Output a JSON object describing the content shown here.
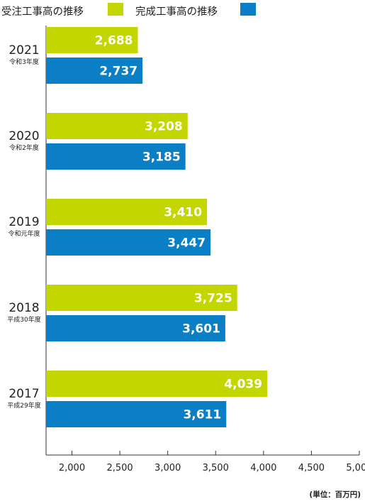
{
  "legend": {
    "orders_label": "受注工事高の推移",
    "completed_label": "完成工事高の推移"
  },
  "unit_label": "(単位：百万円)",
  "colors": {
    "orders": "#c3d600",
    "completed": "#0a7fc6",
    "axis": "#333333",
    "value_text": "#ffffff"
  },
  "chart_data": {
    "type": "bar",
    "orientation": "horizontal",
    "categories": [
      "2021",
      "2020",
      "2019",
      "2018",
      "2017"
    ],
    "category_sublabels": [
      "令和3年度",
      "令和2年度",
      "令和元年度",
      "平成30年度",
      "平成29年度"
    ],
    "series": [
      {
        "name": "受注工事高の推移",
        "values": [
          2688,
          3208,
          3410,
          3725,
          4039
        ],
        "labels": [
          "2,688",
          "3,208",
          "3,410",
          "3,725",
          "4,039"
        ]
      },
      {
        "name": "完成工事高の推移",
        "values": [
          2737,
          3185,
          3447,
          3601,
          3611
        ],
        "labels": [
          "2,737",
          "3,185",
          "3,447",
          "3,601",
          "3,611"
        ]
      }
    ],
    "xlim": [
      1730,
      5000
    ],
    "xticks": [
      2000,
      2500,
      3000,
      3500,
      4000,
      4500,
      5000
    ],
    "xtick_labels": [
      "2,000",
      "2,500",
      "3,000",
      "3,500",
      "4,000",
      "4,500",
      "5,000"
    ],
    "xlabel": "",
    "ylabel": "",
    "grid": false,
    "legend_position": "top-left"
  }
}
